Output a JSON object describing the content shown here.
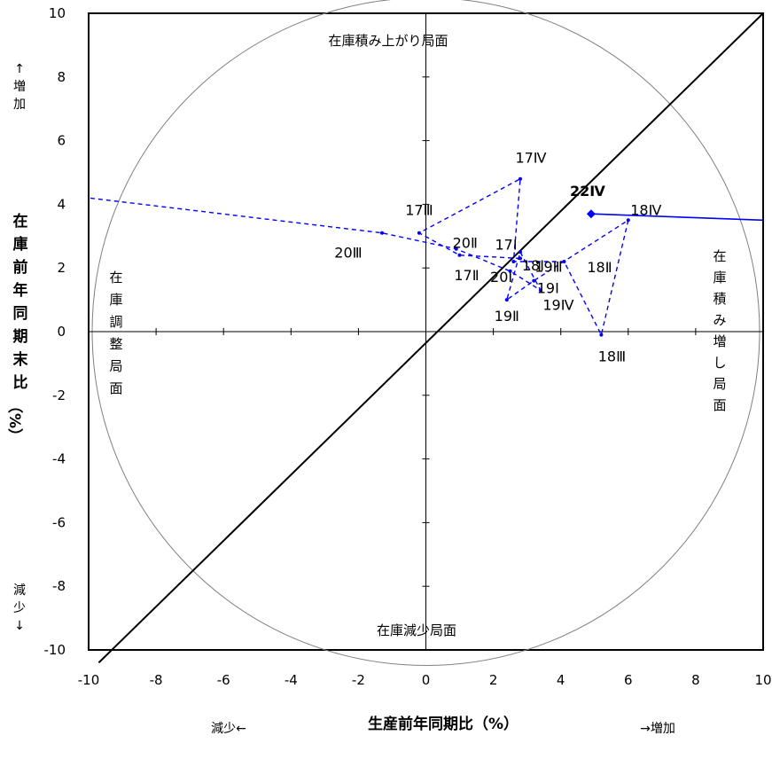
{
  "chart_data": {
    "type": "scatter",
    "xlabel": "生産前年同期比（%）",
    "ylabel": "在庫前年同期末比（%）",
    "xlim": [
      -10,
      10
    ],
    "ylim": [
      -10,
      10
    ],
    "x_ticks": [
      "-10",
      "-8",
      "-6",
      "-4",
      "-2",
      "0",
      "2",
      "4",
      "6",
      "8",
      "10"
    ],
    "y_ticks": [
      "10",
      "8",
      "6",
      "4",
      "2",
      "0",
      "-2",
      "-4",
      "-6",
      "-8",
      "-10"
    ],
    "grid": false,
    "reference_line": "y = x",
    "series": [
      {
        "style": "dashed",
        "points": [
          {
            "label": "17Ⅰ",
            "x": 2.8,
            "y": 2.3
          },
          {
            "label": "17Ⅱ",
            "x": 1.0,
            "y": 2.4
          },
          {
            "label": "17Ⅲ",
            "x": -0.2,
            "y": 3.1
          },
          {
            "label": "17Ⅳ",
            "x": 2.8,
            "y": 4.8
          },
          {
            "label": "18Ⅰ",
            "x": 2.6,
            "y": 2.2
          },
          {
            "label": "18Ⅱ",
            "x": 4.1,
            "y": 2.2
          },
          {
            "label": "18Ⅲ",
            "x": 5.2,
            "y": -0.1
          },
          {
            "label": "18Ⅳ",
            "x": 6.0,
            "y": 3.5
          },
          {
            "label": "19Ⅰ",
            "x": 3.2,
            "y": 1.6
          },
          {
            "label": "19Ⅱ",
            "x": 2.4,
            "y": 1.0
          },
          {
            "label": "19Ⅲ",
            "x": 2.8,
            "y": 2.5
          },
          {
            "label": "19Ⅳ",
            "x": 3.4,
            "y": 1.3
          },
          {
            "label": "20Ⅰ",
            "x": 2.5,
            "y": 1.9
          },
          {
            "label": "20Ⅱ",
            "x": 0.9,
            "y": 2.6
          },
          {
            "label": "20Ⅲ",
            "x": -1.3,
            "y": 3.1
          },
          {
            "label": "20Ⅳ",
            "x": -10.0,
            "y": 4.2
          }
        ]
      },
      {
        "style": "solid",
        "points": [
          {
            "label": "22Ⅳ",
            "x": 4.9,
            "y": 3.7
          },
          {
            "label": "",
            "x": 10.0,
            "y": 3.5
          }
        ]
      }
    ],
    "label_texts": [
      "17Ⅰ",
      "17Ⅱ",
      "17Ⅲ",
      "17Ⅳ",
      "18Ⅰ",
      "18Ⅱ",
      "18Ⅲ",
      "18Ⅳ",
      "19Ⅰ",
      "19Ⅱ",
      "19Ⅲ",
      "19Ⅳ",
      "20Ⅰ",
      "20Ⅱ",
      "20Ⅲ",
      "22Ⅳ"
    ],
    "region_labels": {
      "top": "在庫積み上がり局面",
      "bottom": "在庫減少局面",
      "left": "在庫調整局面",
      "right": "在庫積み増し局面"
    },
    "direction_labels": {
      "y_up": "↑増加",
      "y_down": "減少↓",
      "x_left": "減少←",
      "x_right": "→増加"
    },
    "colors": {
      "series": "#0000ff",
      "axes": "#000000",
      "circle": "#808080"
    }
  }
}
